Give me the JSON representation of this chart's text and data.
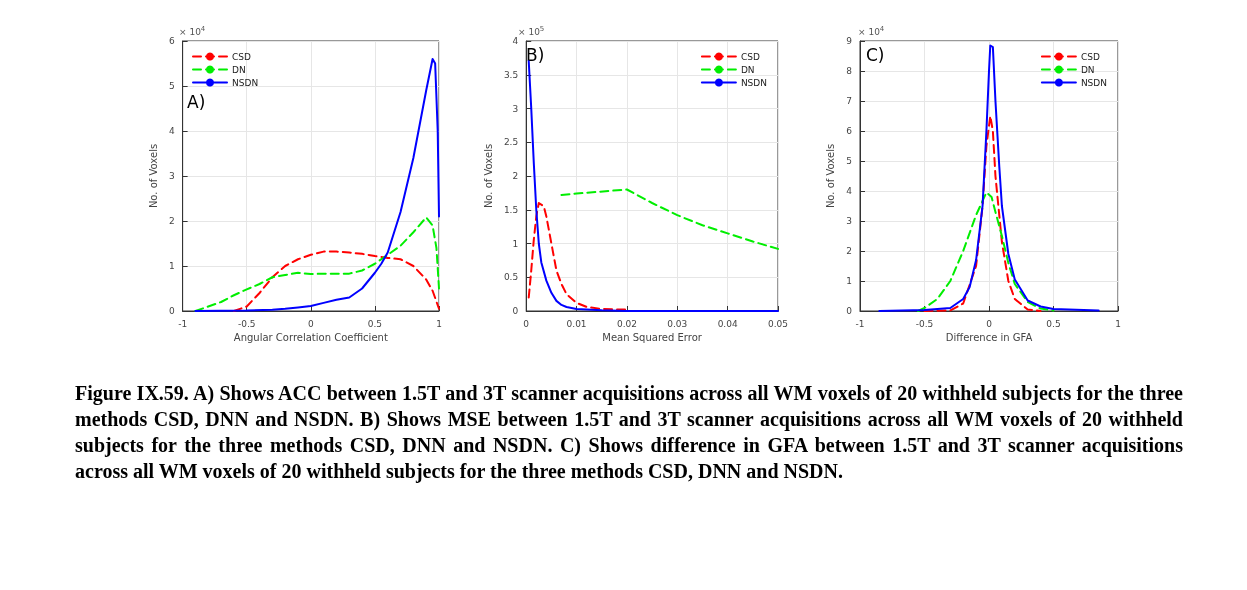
{
  "chart_data": [
    {
      "type": "line",
      "xlabel": "Angular Correlation Coefficient",
      "ylabel": "No. of Voxels",
      "annotations": [
        "× 10$^{4}$",
        "A)"
      ],
      "xlim": [
        -1,
        1
      ],
      "xticks": [
        -1,
        -0.5,
        0,
        0.5,
        1
      ],
      "ylim": [
        0,
        6
      ],
      "yticks": [
        0,
        1,
        2,
        3,
        4,
        5,
        6
      ],
      "grid": true,
      "legend": "top left",
      "series": [
        {
          "name": "CSD",
          "color": "#ff0000",
          "line_style": "dashed",
          "x": [
            -0.6,
            -0.5,
            -0.4,
            -0.3,
            -0.2,
            -0.1,
            0,
            0.1,
            0.2,
            0.3,
            0.4,
            0.5,
            0.6,
            0.7,
            0.8,
            0.9,
            0.95,
            1.0
          ],
          "values": [
            0,
            0.1,
            0.4,
            0.75,
            1.0,
            1.15,
            1.25,
            1.32,
            1.32,
            1.3,
            1.27,
            1.22,
            1.18,
            1.15,
            1.0,
            0.7,
            0.45,
            0.05
          ]
        },
        {
          "name": "DN",
          "color": "#00ee00",
          "line_style": "dashed",
          "x": [
            -0.9,
            -0.8,
            -0.7,
            -0.6,
            -0.5,
            -0.4,
            -0.3,
            -0.2,
            -0.1,
            0,
            0.1,
            0.2,
            0.3,
            0.4,
            0.5,
            0.6,
            0.7,
            0.8,
            0.9,
            0.95,
            0.98,
            1.0
          ],
          "values": [
            0,
            0.1,
            0.2,
            0.35,
            0.48,
            0.6,
            0.75,
            0.8,
            0.85,
            0.82,
            0.83,
            0.83,
            0.83,
            0.9,
            1.05,
            1.25,
            1.45,
            1.75,
            2.08,
            1.9,
            1.4,
            0.5
          ]
        },
        {
          "name": "NSDN",
          "color": "#0000ff",
          "line_style": "solid",
          "x": [
            -0.9,
            -0.5,
            -0.3,
            -0.2,
            -0.1,
            0,
            0.1,
            0.2,
            0.3,
            0.4,
            0.5,
            0.55,
            0.6,
            0.7,
            0.8,
            0.9,
            0.95,
            0.97,
            0.99,
            1.0
          ],
          "values": [
            0,
            0.01,
            0.03,
            0.05,
            0.08,
            0.11,
            0.18,
            0.25,
            0.3,
            0.5,
            0.85,
            1.05,
            1.3,
            2.2,
            3.4,
            4.9,
            5.6,
            5.5,
            4.0,
            2.1
          ]
        }
      ]
    },
    {
      "type": "line",
      "xlabel": "Mean Squared Error",
      "ylabel": "No. of Voxels",
      "annotations": [
        "× 10$^{5}$",
        "B)"
      ],
      "xlim": [
        0,
        0.05
      ],
      "xticks": [
        0,
        0.01,
        0.02,
        0.03,
        0.04,
        0.05
      ],
      "ylim": [
        0,
        4
      ],
      "yticks": [
        0,
        0.5,
        1,
        1.5,
        2,
        2.5,
        3,
        3.5,
        4
      ],
      "grid": true,
      "legend": "top right",
      "series": [
        {
          "name": "CSD",
          "color": "#ff0000",
          "line_style": "dashed",
          "x": [
            0.0005,
            0.001,
            0.0015,
            0.002,
            0.0025,
            0.0035,
            0.004,
            0.005,
            0.006,
            0.007,
            0.008,
            0.01,
            0.012,
            0.015,
            0.02
          ],
          "values": [
            0.2,
            0.6,
            1.05,
            1.4,
            1.6,
            1.55,
            1.4,
            1.0,
            0.6,
            0.4,
            0.25,
            0.12,
            0.06,
            0.03,
            0.02
          ]
        },
        {
          "name": "DN",
          "color": "#00ee00",
          "line_style": "dashed",
          "x": [
            0.007,
            0.01,
            0.02,
            0.025,
            0.03,
            0.035,
            0.04,
            0.045,
            0.05
          ],
          "values": [
            1.72,
            1.74,
            1.8,
            1.6,
            1.42,
            1.27,
            1.15,
            1.03,
            0.92
          ]
        },
        {
          "name": "NSDN",
          "color": "#0000ff",
          "line_style": "solid",
          "x": [
            0.0005,
            0.001,
            0.0015,
            0.002,
            0.0025,
            0.003,
            0.004,
            0.005,
            0.006,
            0.007,
            0.008,
            0.01,
            0.015,
            0.02,
            0.05
          ],
          "values": [
            3.7,
            3.0,
            2.2,
            1.5,
            1.0,
            0.72,
            0.45,
            0.27,
            0.15,
            0.09,
            0.06,
            0.03,
            0.01,
            0,
            0
          ]
        }
      ]
    },
    {
      "type": "line",
      "xlabel": "Difference in GFA",
      "ylabel": "No. of Voxels",
      "annotations": [
        "× 10$^{4}$",
        "C)",
        "Figure IX.59. A) Shows ACC between 1.5T and 3T scanner acquisitions across all WM voxels of 20 withheld subjects for the three methods CSD, DNN and NSDN. B) Shows MSE between 1.5T and 3T scanner acquisitions across all WM voxels of 20 withheld subjects for the three methods CSD, DNN and NSDN. C) Shows difference in GFA between 1.5T and 3T scanner acquisitions across all WM voxels of 20 withheld subjects for the three methods CSD, DNN and NSDN."
      ],
      "xlim": [
        -1,
        1
      ],
      "xticks": [
        -1,
        -0.5,
        0,
        0.5,
        1
      ],
      "ylim": [
        0,
        9
      ],
      "yticks": [
        0,
        1,
        2,
        3,
        4,
        5,
        6,
        7,
        8,
        9
      ],
      "grid": true,
      "legend": "top right",
      "series": [
        {
          "name": "CSD",
          "color": "#ff0000",
          "line_style": "dashed",
          "x": [
            -0.5,
            -0.3,
            -0.2,
            -0.1,
            -0.05,
            -0.02,
            0.01,
            0.03,
            0.05,
            0.1,
            0.15,
            0.2,
            0.3,
            0.4
          ],
          "values": [
            0,
            0.02,
            0.25,
            1.5,
            3.5,
            5.5,
            6.5,
            6.0,
            4.5,
            2.3,
            1.0,
            0.4,
            0.05,
            0
          ]
        },
        {
          "name": "DN",
          "color": "#00ee00",
          "line_style": "dashed",
          "x": [
            -0.55,
            -0.5,
            -0.4,
            -0.3,
            -0.2,
            -0.1,
            -0.02,
            0.02,
            0.05,
            0.1,
            0.15,
            0.2,
            0.3,
            0.4,
            0.5
          ],
          "values": [
            0,
            0.1,
            0.4,
            1.0,
            2.0,
            3.2,
            3.95,
            3.8,
            3.3,
            2.5,
            1.6,
            0.9,
            0.3,
            0.08,
            0.02
          ]
        },
        {
          "name": "NSDN",
          "color": "#0000ff",
          "line_style": "solid",
          "x": [
            -0.85,
            -0.5,
            -0.3,
            -0.2,
            -0.15,
            -0.1,
            -0.05,
            -0.02,
            0,
            0.01,
            0.03,
            0.05,
            0.08,
            0.1,
            0.15,
            0.2,
            0.3,
            0.4,
            0.5,
            0.85
          ],
          "values": [
            0,
            0.03,
            0.1,
            0.4,
            0.8,
            1.7,
            3.5,
            6.0,
            8.0,
            8.85,
            8.8,
            7.0,
            4.8,
            3.5,
            1.9,
            1.05,
            0.35,
            0.15,
            0.07,
            0.02
          ]
        }
      ]
    }
  ]
}
